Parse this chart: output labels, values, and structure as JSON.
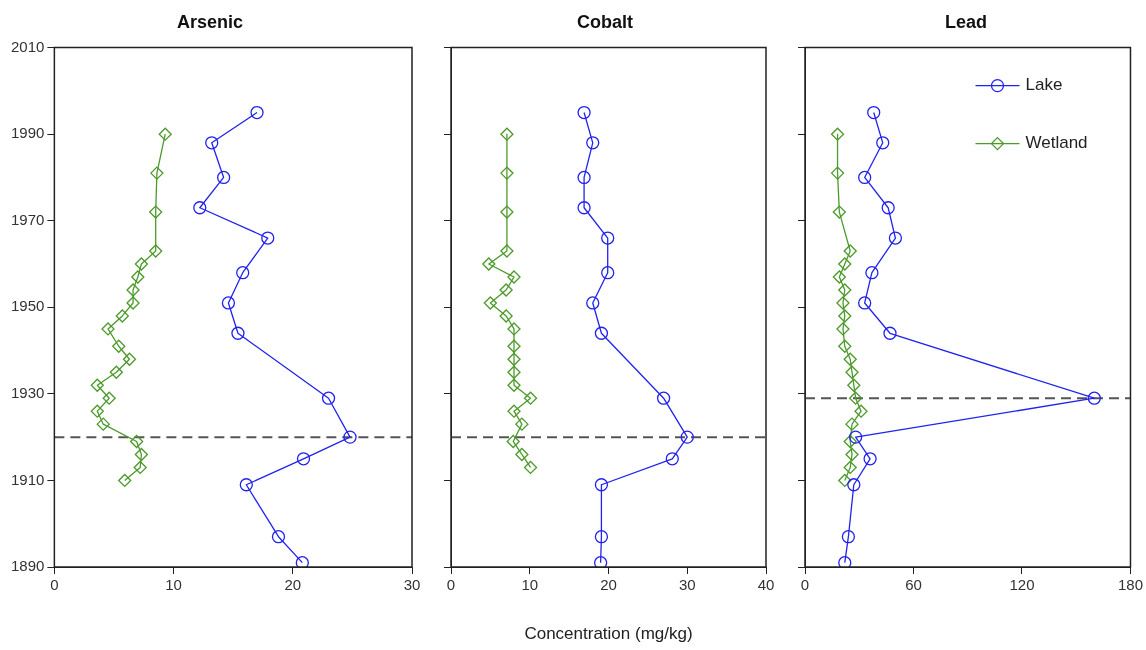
{
  "chart_data": [
    {
      "type": "line",
      "title": "Arsenic",
      "xlim": [
        0,
        30
      ],
      "xticks": [
        0,
        10,
        20,
        30
      ],
      "ylim": [
        1890,
        2010
      ],
      "yticks": [
        1890,
        1910,
        1930,
        1950,
        1970,
        1990,
        2010
      ],
      "grid": false,
      "legend": false,
      "line_style": "solid",
      "ref_lines": [
        {
          "axis": "y",
          "value": 1920,
          "color": "#555555",
          "line_style": "dashed"
        }
      ],
      "series": [
        {
          "color": "#2222ee",
          "marker": "circle",
          "x": [
            17,
            13.2,
            14.2,
            12.2,
            17.9,
            15.8,
            14.6,
            15.4,
            23,
            24.8,
            20.9,
            16.1,
            18.8,
            20.8
          ],
          "values": [
            1995,
            1988,
            1980,
            1973,
            1966,
            1958,
            1951,
            1944,
            1929,
            1920,
            1915,
            1909,
            1897,
            1891
          ]
        },
        {
          "color": "#4c9a2a",
          "marker": "diamond",
          "x": [
            9.3,
            8.6,
            8.5,
            8.5,
            7.3,
            7,
            6.6,
            6.6,
            5.7,
            4.5,
            5.4,
            6.3,
            5.2,
            3.6,
            4.6,
            3.6,
            4.1,
            6.9,
            7.3,
            7.2,
            5.9
          ],
          "values": [
            1990,
            1981,
            1972,
            1963,
            1960,
            1957,
            1954,
            1951,
            1948,
            1945,
            1941,
            1938,
            1935,
            1932,
            1929,
            1926,
            1923,
            1919,
            1916,
            1913,
            1910
          ]
        }
      ]
    },
    {
      "type": "line",
      "title": "Cobalt",
      "xlabel": "Concentration (mg/kg)",
      "xlim": [
        0,
        40
      ],
      "xticks": [
        0,
        10,
        20,
        30,
        40
      ],
      "ylim": [
        1890,
        2010
      ],
      "yticks": [
        1890,
        1910,
        1930,
        1950,
        1970,
        1990,
        2010
      ],
      "tick_labels": "x",
      "grid": false,
      "legend": false,
      "line_style": "solid",
      "ref_lines": [
        {
          "axis": "y",
          "value": 1920,
          "color": "#555555",
          "line_style": "dashed"
        }
      ],
      "series": [
        {
          "color": "#2222ee",
          "marker": "circle",
          "x": [
            16.9,
            18,
            16.9,
            16.9,
            19.9,
            19.9,
            18,
            19.1,
            27,
            30,
            28.1,
            19.1,
            19.1,
            19
          ],
          "values": [
            1995,
            1988,
            1980,
            1973,
            1966,
            1958,
            1951,
            1944,
            1929,
            1920,
            1915,
            1909,
            1897,
            1891
          ]
        },
        {
          "color": "#4c9a2a",
          "marker": "diamond",
          "x": [
            7.1,
            7.1,
            7.1,
            7.1,
            4.8,
            8,
            7,
            5,
            7,
            8,
            8,
            8,
            8,
            8,
            10.1,
            8,
            9,
            7.9,
            9,
            10.1
          ],
          "values": [
            1990,
            1981,
            1972,
            1963,
            1960,
            1957,
            1954,
            1951,
            1948,
            1945,
            1941,
            1938,
            1935,
            1932,
            1929,
            1926,
            1923,
            1919,
            1916,
            1913
          ]
        }
      ]
    },
    {
      "type": "line",
      "title": "Lead",
      "xlim": [
        0,
        180
      ],
      "xticks": [
        0,
        60,
        120,
        180
      ],
      "ylim": [
        1890,
        2010
      ],
      "yticks": [
        1890,
        1910,
        1930,
        1950,
        1970,
        1990,
        2010
      ],
      "tick_labels": "x",
      "grid": false,
      "legend": "top right",
      "line_style": "solid",
      "ref_lines": [
        {
          "axis": "y",
          "value": 1929,
          "color": "#555555",
          "line_style": "dashed"
        }
      ],
      "series": [
        {
          "name": "Lake",
          "color": "#2222ee",
          "marker": "circle",
          "x": [
            38,
            43,
            33,
            46,
            50,
            37,
            33,
            47,
            160,
            28,
            36,
            27,
            24,
            22
          ],
          "values": [
            1995,
            1988,
            1980,
            1973,
            1966,
            1958,
            1951,
            1944,
            1929,
            1920,
            1915,
            1909,
            1897,
            1891
          ]
        },
        {
          "name": "Wetland",
          "color": "#4c9a2a",
          "marker": "diamond",
          "x": [
            18,
            18,
            19,
            25,
            22,
            19,
            22,
            21,
            22,
            21,
            22,
            25,
            26,
            27,
            28,
            31,
            26,
            25,
            26,
            25,
            22
          ],
          "values": [
            1990,
            1981,
            1972,
            1963,
            1960,
            1957,
            1954,
            1951,
            1948,
            1945,
            1941,
            1938,
            1935,
            1932,
            1929,
            1926,
            1923,
            1919,
            1916,
            1913,
            1910
          ]
        }
      ]
    }
  ]
}
